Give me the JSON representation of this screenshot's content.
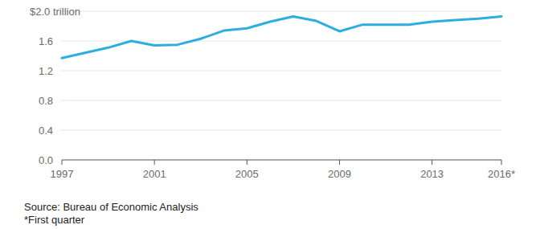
{
  "chart_data": {
    "type": "line",
    "x": [
      1997,
      1998,
      1999,
      2000,
      2001,
      2002,
      2003,
      2004,
      2005,
      2006,
      2007,
      2008,
      2009,
      2010,
      2011,
      2012,
      2013,
      2014,
      2015,
      2016
    ],
    "values": [
      1.37,
      1.44,
      1.51,
      1.6,
      1.54,
      1.55,
      1.63,
      1.74,
      1.77,
      1.86,
      1.93,
      1.87,
      1.73,
      1.82,
      1.82,
      1.82,
      1.86,
      1.88,
      1.9,
      1.93
    ],
    "color": "#2eaee0",
    "xlim": [
      1997,
      2016
    ],
    "xticks": [
      1997,
      2001,
      2005,
      2009,
      2013,
      {
        "value": 2016,
        "label": "2016*"
      }
    ],
    "ylim": [
      0,
      2.0
    ],
    "yticks": [
      {
        "value": 0,
        "label": "0.0"
      },
      0.4,
      0.8,
      1.2,
      1.6,
      {
        "value": 2.0,
        "label": "$2.0 trillion"
      }
    ],
    "grid": true,
    "source": "Source: Bureau of Economic Analysis",
    "note": "*First quarter"
  }
}
